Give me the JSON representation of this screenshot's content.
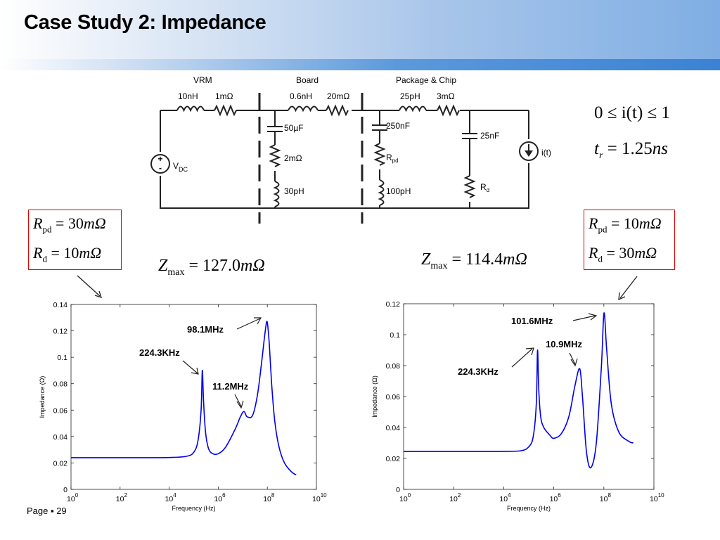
{
  "slide": {
    "title": "Case Study 2: Impedance",
    "footer_page": "Page ▪ 29"
  },
  "circuit": {
    "sections": {
      "vrm": "VRM",
      "board": "Board",
      "package": "Package & Chip"
    },
    "labels": {
      "vrm_l": "10nH",
      "vrm_r": "1mΩ",
      "board_l": "0.6nH",
      "board_r": "20mΩ",
      "pkg_c": "25pH",
      "pkg_r": "3mΩ",
      "c1": "50µF",
      "r1": "2mΩ",
      "l1": "30pH",
      "c2": "250nF",
      "r2": "R",
      "r2_sub": "pd",
      "l2": "100pH",
      "c3": "25nF",
      "r3": "R",
      "r3_sub": "d",
      "source": "V",
      "source_sub": "DC",
      "current": "i(t)"
    }
  },
  "equations": {
    "range": "0 ≤ i(t) ≤ 1",
    "rise_var": "t",
    "rise_sub": "r",
    "rise_val": "= 1.25",
    "rise_unit": "ns"
  },
  "left_case": {
    "rpd": {
      "sym": "R",
      "sub": "pd",
      "val": "= 30",
      "unit": "mΩ"
    },
    "rd": {
      "sym": "R",
      "sub": "d",
      "val": "= 10",
      "unit": "mΩ"
    },
    "zmax": {
      "sym": "Z",
      "sub": "max",
      "val": "= 127.0",
      "unit": "mΩ"
    }
  },
  "right_case": {
    "rpd": {
      "sym": "R",
      "sub": "pd",
      "val": "= 10",
      "unit": "mΩ"
    },
    "rd": {
      "sym": "R",
      "sub": "d",
      "val": "= 30",
      "unit": "mΩ"
    },
    "zmax": {
      "sym": "Z",
      "sub": "max",
      "val": "= 114.4",
      "unit": "mΩ"
    }
  },
  "chart_data": [
    {
      "type": "line",
      "xlabel": "Frequency (Hz)",
      "ylabel": "Impedance (Ω)",
      "xscale": "log",
      "xlim": [
        1,
        10000000000
      ],
      "ylim": [
        0,
        0.14
      ],
      "xticks": [
        "10^0",
        "10^2",
        "10^4",
        "10^6",
        "10^8",
        "10^10"
      ],
      "yticks": [
        "0",
        "0.02",
        "0.04",
        "0.06",
        "0.08",
        "0.1",
        "0.12",
        "0.14"
      ],
      "series": [
        {
          "color": "#0000ee",
          "x": [
            1,
            1000,
            10000,
            50000,
            100000,
            150000,
            200000,
            224300,
            250000,
            300000,
            400000,
            600000,
            1000000,
            2000000,
            5000000,
            8000000,
            11200000,
            15000000,
            25000000,
            40000000,
            60000000,
            80000000,
            98100000,
            120000000,
            150000000,
            200000000,
            300000000,
            500000000,
            1000000000,
            1500000000
          ],
          "y": [
            0.024,
            0.024,
            0.0241,
            0.025,
            0.028,
            0.037,
            0.06,
            0.09,
            0.068,
            0.044,
            0.031,
            0.027,
            0.027,
            0.032,
            0.046,
            0.055,
            0.059,
            0.055,
            0.056,
            0.072,
            0.098,
            0.118,
            0.127,
            0.11,
            0.08,
            0.052,
            0.032,
            0.02,
            0.013,
            0.011
          ]
        }
      ],
      "annotations": [
        "98.1MHz",
        "224.3KHz",
        "11.2MHz"
      ]
    },
    {
      "type": "line",
      "xlabel": "Frequency (Hz)",
      "ylabel": "Impedance (Ω)",
      "xscale": "log",
      "xlim": [
        1,
        10000000000
      ],
      "ylim": [
        0,
        0.12
      ],
      "xticks": [
        "10^0",
        "10^2",
        "10^4",
        "10^6",
        "10^8",
        "10^10"
      ],
      "yticks": [
        "0",
        "0.02",
        "0.04",
        "0.06",
        "0.08",
        "0.1",
        "0.12"
      ],
      "series": [
        {
          "color": "#0000ee",
          "x": [
            1,
            1000,
            10000,
            50000,
            100000,
            150000,
            200000,
            224300,
            250000,
            300000,
            400000,
            700000,
            1000000,
            2000000,
            4000000,
            7000000,
            10900000,
            14000000,
            20000000,
            30000000,
            50000000,
            80000000,
            101600000,
            130000000,
            200000000,
            400000000,
            1000000000,
            1500000000
          ],
          "y": [
            0.0245,
            0.0245,
            0.0246,
            0.025,
            0.0275,
            0.034,
            0.055,
            0.09,
            0.065,
            0.047,
            0.04,
            0.035,
            0.033,
            0.036,
            0.047,
            0.067,
            0.078,
            0.06,
            0.025,
            0.014,
            0.03,
            0.08,
            0.114,
            0.09,
            0.055,
            0.037,
            0.031,
            0.03
          ]
        }
      ],
      "annotations": [
        "101.6MHz",
        "10.9MHz",
        "224.3KHz"
      ]
    }
  ]
}
